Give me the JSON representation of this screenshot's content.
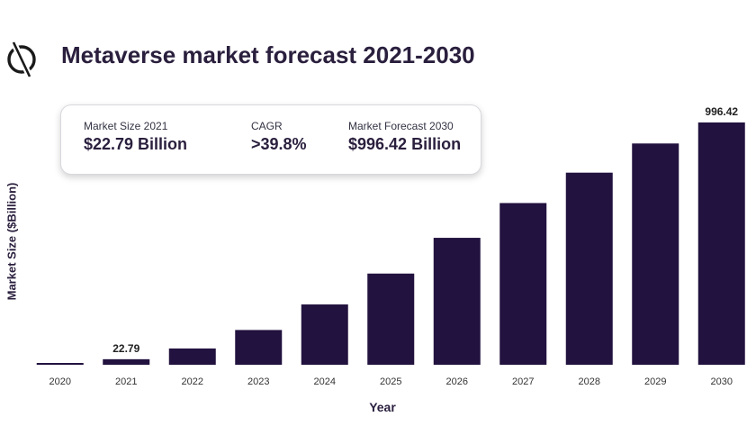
{
  "header": {
    "title": "Metaverse market forecast 2021-2030",
    "logo_icon": "circle-slash-logo-icon"
  },
  "stats": [
    {
      "label": "Market Size 2021",
      "value": "$22.79 Billion"
    },
    {
      "label": "CAGR",
      "value": ">39.8%"
    },
    {
      "label": "Market Forecast 2030",
      "value": "$996.42 Billion"
    }
  ],
  "chart_data": {
    "type": "bar",
    "title": "Metaverse market forecast 2021-2030",
    "xlabel": "Year",
    "ylabel": "Market Size ($Billion)",
    "categories": [
      "2020",
      "2021",
      "2022",
      "2023",
      "2024",
      "2025",
      "2026",
      "2027",
      "2028",
      "2029",
      "2030"
    ],
    "values": [
      7,
      22.79,
      67,
      143,
      248,
      375,
      522,
      665,
      790,
      910,
      996.42
    ],
    "data_labels": [
      {
        "category": "2021",
        "text": "22.79"
      },
      {
        "category": "2030",
        "text": "996.42"
      }
    ],
    "ylim": [
      0,
      1000
    ],
    "grid": false,
    "legend": "none",
    "bar_color": "#22123f"
  }
}
